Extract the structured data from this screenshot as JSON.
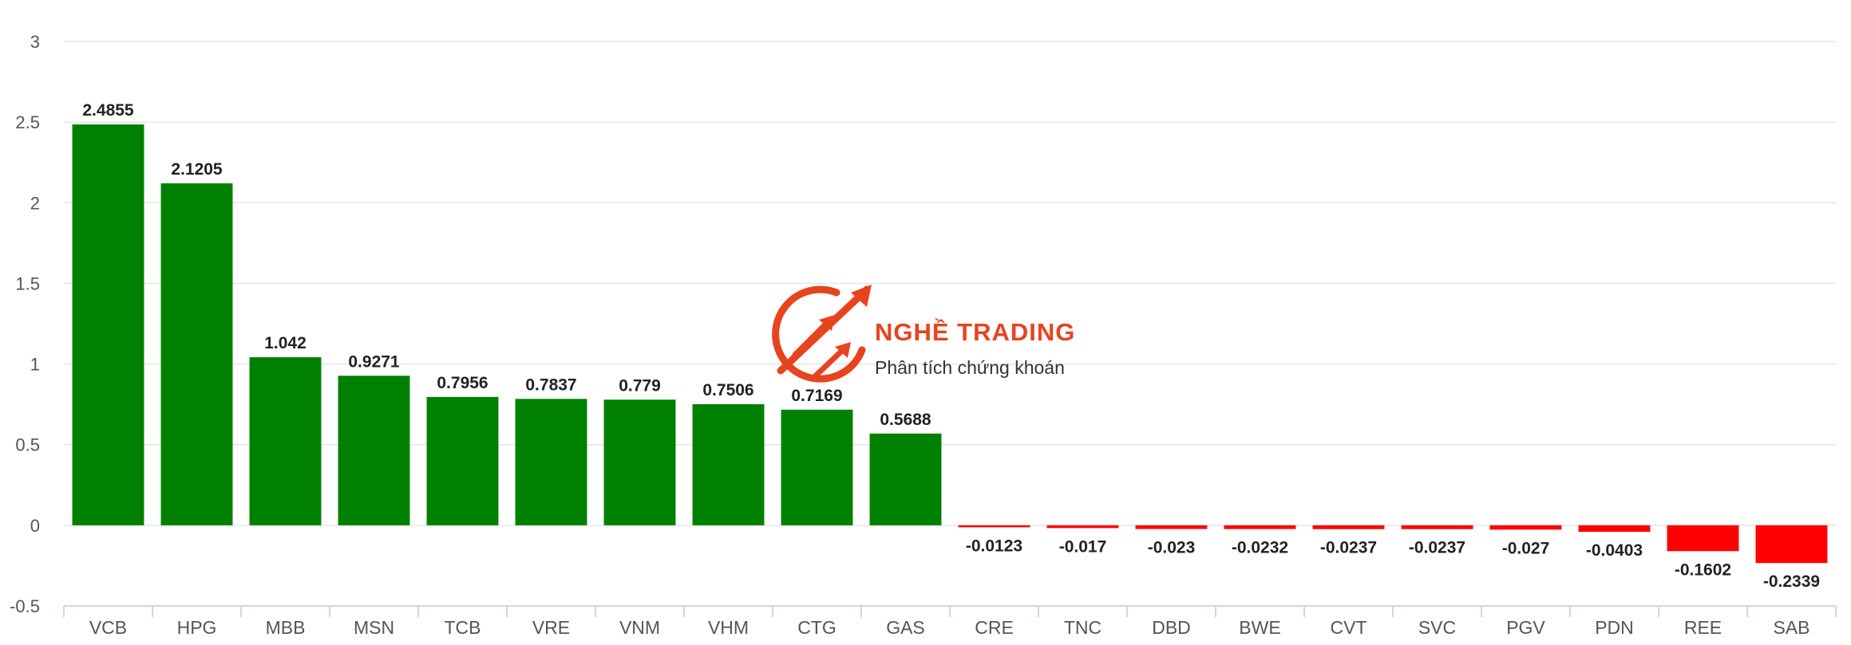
{
  "watermark": {
    "brand": "NGHỀ TRADING",
    "tagline": "Phân tích chứng khoán",
    "color": "#e8431f"
  },
  "colors": {
    "positive": "#008000",
    "negative": "#ff0000",
    "grid": "#e6e6e6",
    "axis": "#ccd6eb"
  },
  "chart_data": {
    "type": "bar",
    "title": "",
    "xlabel": "",
    "ylabel": "",
    "ylim": [
      -0.5,
      3
    ],
    "yticks": [
      "-0.5",
      "0",
      "0.5",
      "1",
      "1.5",
      "2",
      "2.5",
      "3"
    ],
    "grid": true,
    "legend": "none",
    "categories": [
      "VCB",
      "HPG",
      "MBB",
      "MSN",
      "TCB",
      "VRE",
      "VNM",
      "VHM",
      "CTG",
      "GAS",
      "CRE",
      "TNC",
      "DBD",
      "BWE",
      "CVT",
      "SVC",
      "PGV",
      "PDN",
      "REE",
      "SAB"
    ],
    "values": [
      2.4855,
      2.1205,
      1.042,
      0.9271,
      0.7956,
      0.7837,
      0.779,
      0.7506,
      0.7169,
      0.5688,
      -0.0123,
      -0.017,
      -0.023,
      -0.0232,
      -0.0237,
      -0.0237,
      -0.027,
      -0.0403,
      -0.1602,
      -0.2339
    ],
    "data_labels": [
      "2.4855",
      "2.1205",
      "1.042",
      "0.9271",
      "0.7956",
      "0.7837",
      "0.779",
      "0.7506",
      "0.7169",
      "0.5688",
      "-0.0123",
      "-0.017",
      "-0.023",
      "-0.0232",
      "-0.0237",
      "-0.0237",
      "-0.027",
      "-0.0403",
      "-0.1602",
      "-0.2339"
    ]
  }
}
